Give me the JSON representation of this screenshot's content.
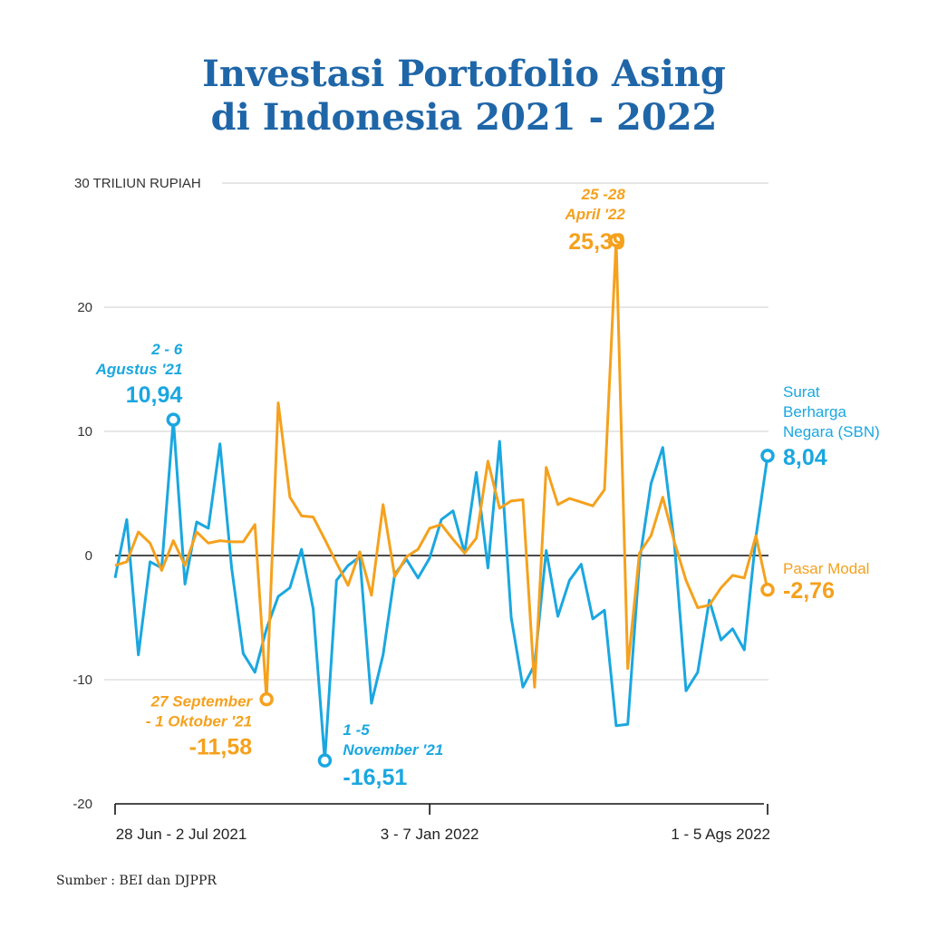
{
  "title_line1": "Investasi Portofolio Asing",
  "title_line2": "di Indonesia 2021 - 2022",
  "source": "Sumber : BEI dan DJPPR",
  "colors": {
    "sbn": "#1aa7e0",
    "pasar_modal": "#f5a11d",
    "title": "#1f66a8",
    "grid": "#cfcfcf"
  },
  "chart_data": {
    "type": "line",
    "ylabel": "30 TRILIUN RUPIAH",
    "ylim": [
      -20,
      30
    ],
    "yticks": [
      {
        "value": 30,
        "label": "30 TRILIUN RUPIAH"
      },
      {
        "value": 20,
        "label": "20"
      },
      {
        "value": 10,
        "label": "10"
      },
      {
        "value": 0,
        "label": "0"
      },
      {
        "value": -10,
        "label": "-10"
      },
      {
        "value": -20,
        "label": "-20"
      }
    ],
    "xlim": [
      0,
      58
    ],
    "xticks": [
      {
        "index": 0,
        "label": "28 Jun - 2 Jul 2021"
      },
      {
        "index": 27,
        "label": "3 - 7 Jan 2022"
      },
      {
        "index": 56,
        "label": "1 - 5 Ags 2022"
      }
    ],
    "grid": true,
    "series": [
      {
        "name": "Surat Berharga Negara (SBN)",
        "name_lines": [
          "Surat",
          "Berharga",
          "Negara (SBN)"
        ],
        "last_value_label": "8,04",
        "values": [
          -1.8,
          2.9,
          -8.0,
          -0.5,
          -1.0,
          10.94,
          -2.3,
          2.7,
          2.2,
          9.0,
          -1.0,
          -7.9,
          -9.4,
          -5.9,
          -3.3,
          -2.6,
          0.5,
          -4.3,
          -16.51,
          -2.0,
          -0.8,
          -0.1,
          -11.9,
          -8.0,
          -1.5,
          -0.3,
          -1.8,
          -0.2,
          2.9,
          3.6,
          0.2,
          6.7,
          -1.0,
          9.2,
          -5.0,
          -10.6,
          -8.8,
          0.4,
          -4.9,
          -2.0,
          -0.7,
          -5.1,
          -4.4,
          -13.7,
          -13.6,
          -0.5,
          5.8,
          8.7,
          1.0,
          -10.9,
          -9.4,
          -3.6,
          -6.8,
          -5.9,
          -7.6,
          1.5,
          8.04
        ]
      },
      {
        "name": "Pasar Modal",
        "name_lines": [
          "Pasar Modal"
        ],
        "last_value_label": "-2,76",
        "values": [
          -0.8,
          -0.5,
          1.9,
          1.0,
          -1.2,
          1.2,
          -0.8,
          1.9,
          1.0,
          1.2,
          1.1,
          1.1,
          2.5,
          -11.58,
          12.3,
          4.7,
          3.2,
          3.1,
          1.3,
          -0.6,
          -2.4,
          0.3,
          -3.2,
          4.1,
          -1.7,
          -0.1,
          0.5,
          2.2,
          2.5,
          1.3,
          0.2,
          1.4,
          7.6,
          3.8,
          4.4,
          4.5,
          -10.6,
          7.1,
          4.1,
          4.6,
          4.3,
          4.0,
          5.3,
          25.39,
          -9.1,
          0.2,
          1.6,
          4.7,
          1.1,
          -2.0,
          -4.2,
          -4.0,
          -2.6,
          -1.6,
          -1.8,
          1.6,
          -2.76
        ]
      }
    ],
    "annotations": [
      {
        "series": 0,
        "index": 5,
        "date_lines": [
          "2 - 6",
          "Agustus '21"
        ],
        "value_label": "10,94"
      },
      {
        "series": 0,
        "index": 18,
        "date_lines": [
          "1 -5",
          "November '21"
        ],
        "value_label": "-16,51"
      },
      {
        "series": 1,
        "index": 13,
        "date_lines": [
          "27 September",
          "- 1 Oktober '21"
        ],
        "value_label": "-11,58"
      },
      {
        "series": 1,
        "index": 43,
        "date_lines": [
          "25 -28",
          "April '22"
        ],
        "value_label": "25,39"
      }
    ]
  }
}
